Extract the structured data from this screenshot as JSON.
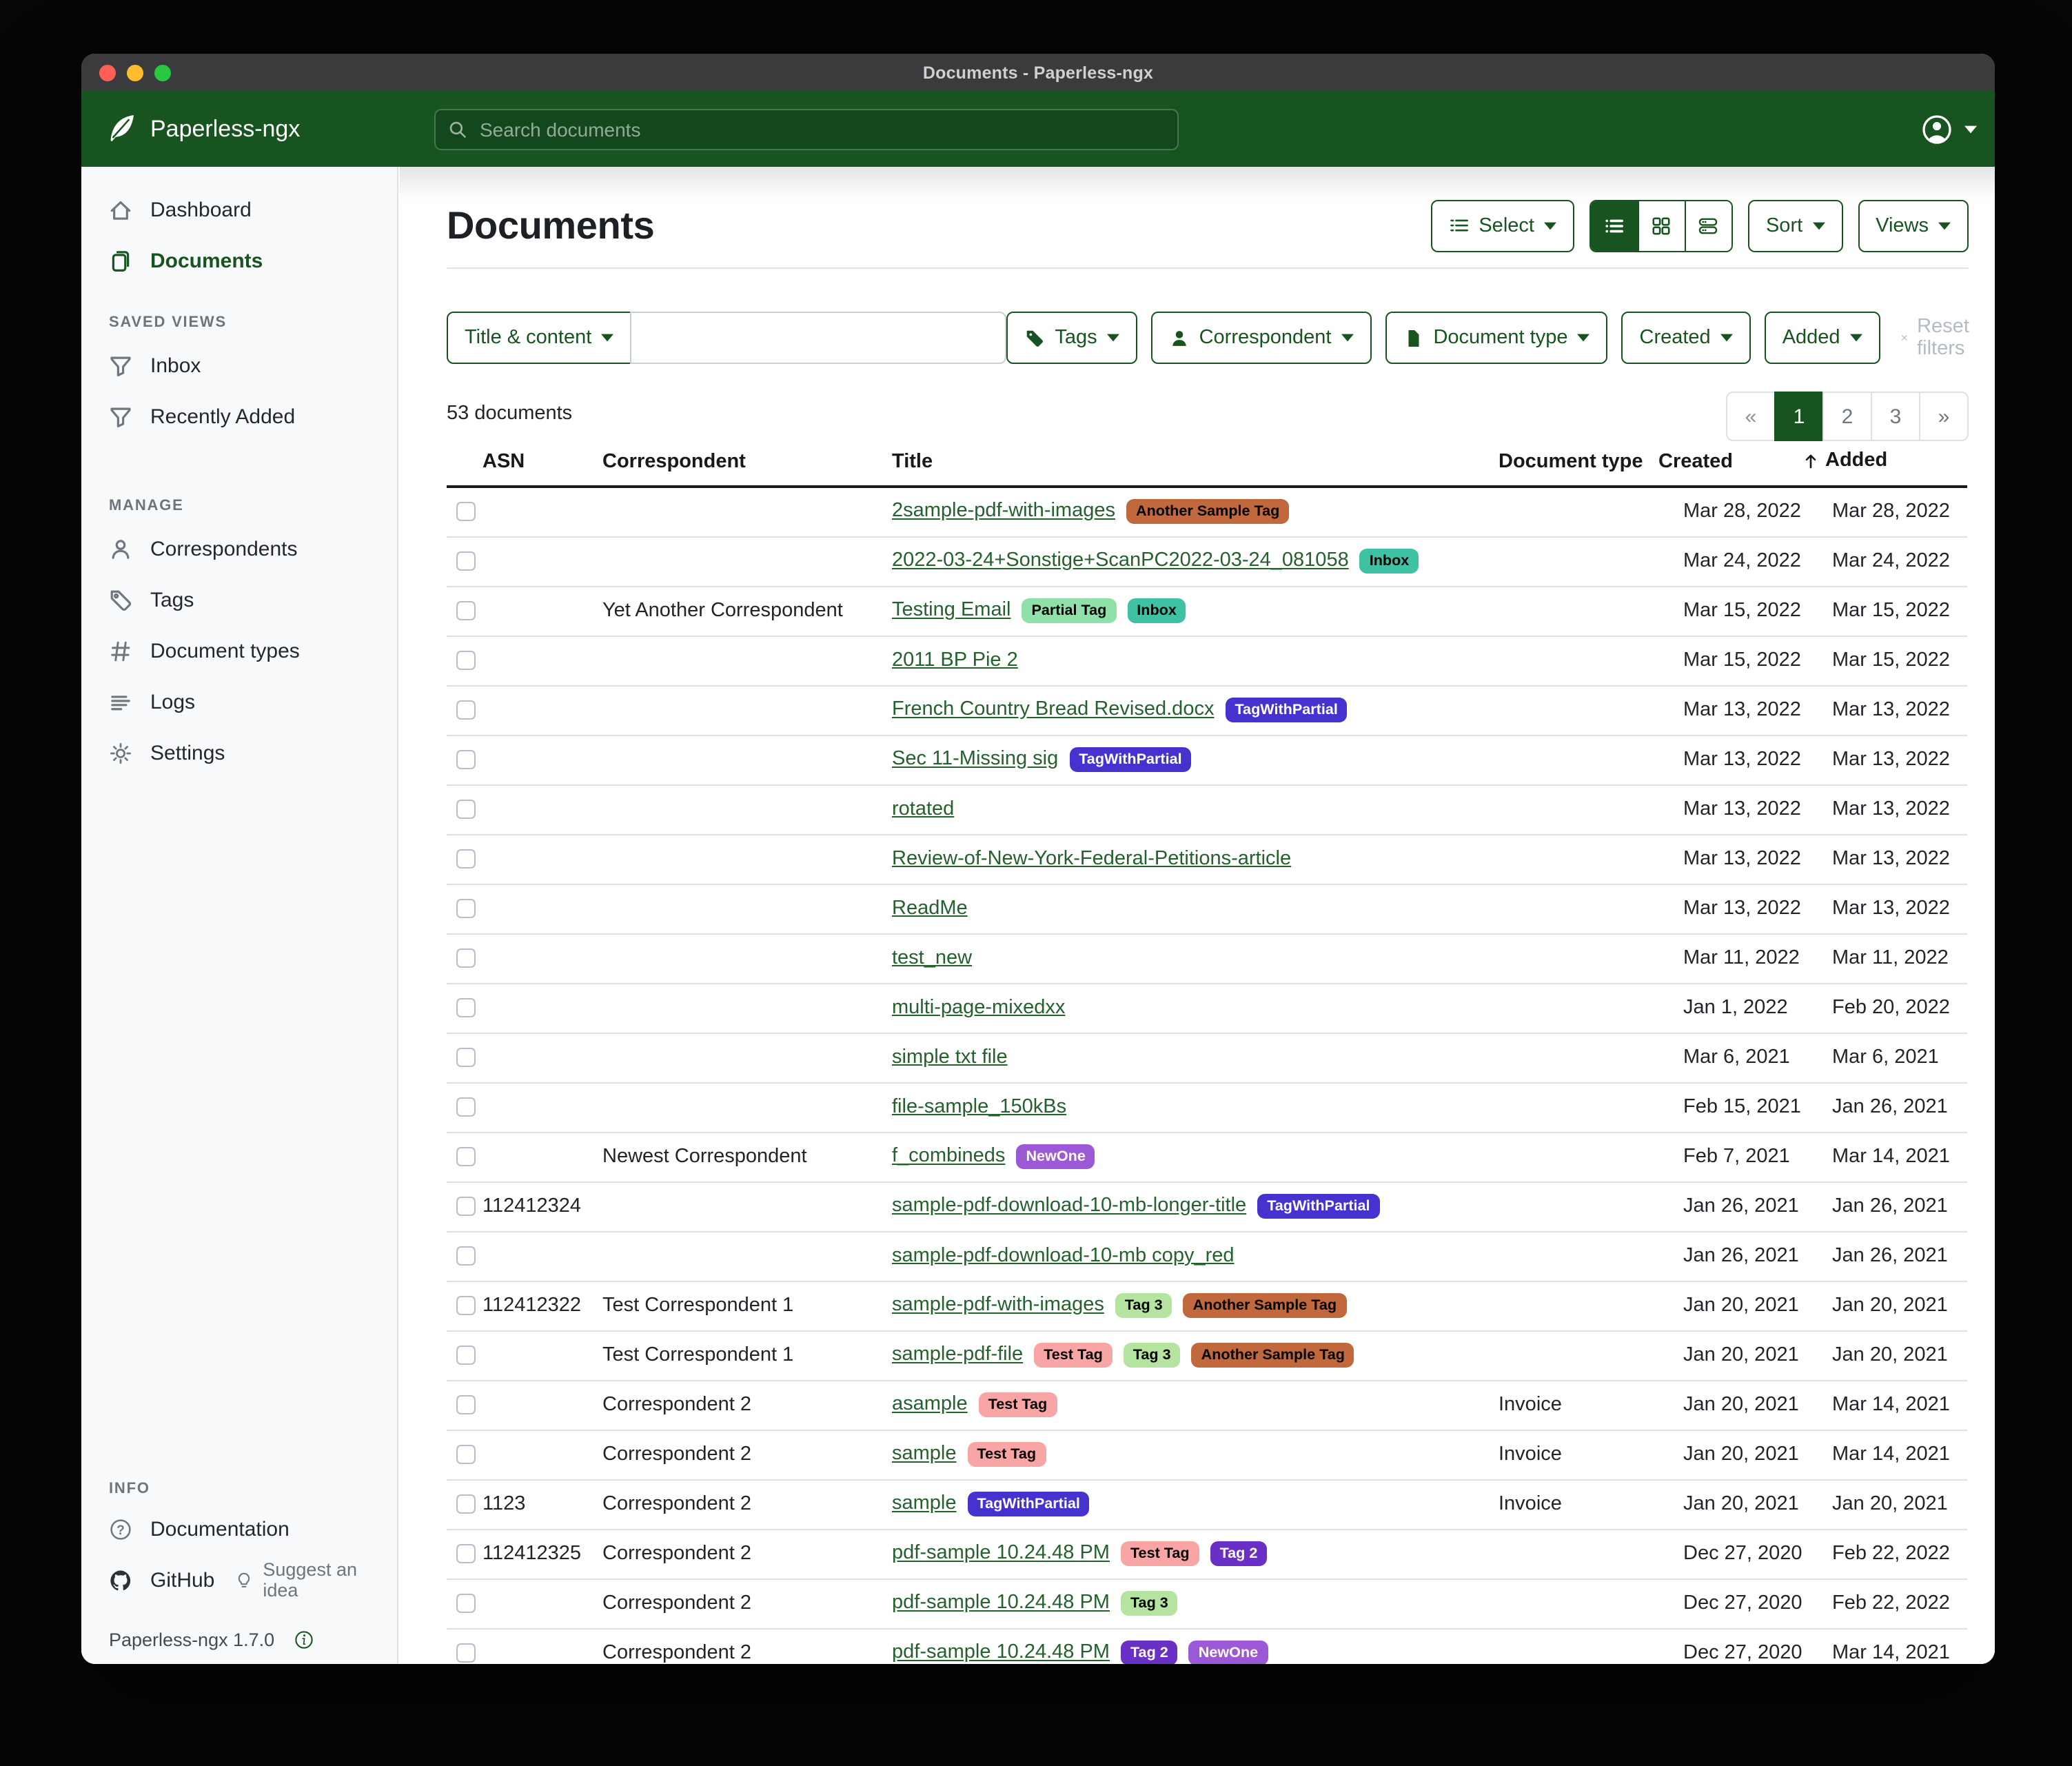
{
  "window": {
    "title": "Documents - Paperless-ngx"
  },
  "navbar": {
    "brand": "Paperless-ngx",
    "search_placeholder": "Search documents"
  },
  "sidebar": {
    "sections": [
      {
        "header": "",
        "items": [
          {
            "icon": "home",
            "label": "Dashboard",
            "active": false
          },
          {
            "icon": "documents",
            "label": "Documents",
            "active": true
          }
        ]
      },
      {
        "header": "SAVED VIEWS",
        "items": [
          {
            "icon": "funnel",
            "label": "Inbox",
            "active": false
          },
          {
            "icon": "funnel",
            "label": "Recently Added",
            "active": false
          }
        ]
      },
      {
        "header": "MANAGE",
        "items": [
          {
            "icon": "person",
            "label": "Correspondents",
            "active": false
          },
          {
            "icon": "tag",
            "label": "Tags",
            "active": false
          },
          {
            "icon": "hash",
            "label": "Document types",
            "active": false
          },
          {
            "icon": "logs",
            "label": "Logs",
            "active": false
          },
          {
            "icon": "gear",
            "label": "Settings",
            "active": false
          }
        ]
      }
    ],
    "info": {
      "header": "INFO",
      "documentation_label": "Documentation",
      "github_label": "GitHub",
      "suggest_label": "Suggest an idea",
      "version": "Paperless-ngx 1.7.0"
    }
  },
  "toolbar": {
    "title": "Documents",
    "select_label": "Select",
    "sort_label": "Sort",
    "views_label": "Views",
    "view_modes": [
      {
        "icon": "view-list",
        "name": "list",
        "active": true
      },
      {
        "icon": "view-grid",
        "name": "grid",
        "active": false
      },
      {
        "icon": "view-detail",
        "name": "detail",
        "active": false
      }
    ]
  },
  "filters": {
    "field_label": "Title & content",
    "input_value": "",
    "buttons": [
      {
        "label": "Tags",
        "icon": "tag-fill"
      },
      {
        "label": "Correspondent",
        "icon": "person-fill"
      },
      {
        "label": "Document type",
        "icon": "file-fill"
      },
      {
        "label": "Created",
        "icon": ""
      },
      {
        "label": "Added",
        "icon": ""
      }
    ],
    "reset_label": "Reset filters"
  },
  "summary": {
    "count_text": "53 documents"
  },
  "pagination": {
    "items": [
      "«",
      "1",
      "2",
      "3",
      "»"
    ],
    "active": "1"
  },
  "table": {
    "headers": {
      "asn": "ASN",
      "correspondent": "Correspondent",
      "title": "Title",
      "type": "Document type",
      "created": "Created",
      "added": "Added"
    },
    "rows": [
      {
        "asn": "",
        "correspondent": "",
        "title": "2sample-pdf-with-images",
        "tags": [
          "Another Sample Tag"
        ],
        "type": "",
        "created": "Mar 28, 2022",
        "added": "Mar 28, 2022"
      },
      {
        "asn": "",
        "correspondent": "",
        "title": "2022-03-24+Sonstige+ScanPC2022-03-24_081058",
        "tags": [
          "Inbox"
        ],
        "type": "",
        "created": "Mar 24, 2022",
        "added": "Mar 24, 2022"
      },
      {
        "asn": "",
        "correspondent": "Yet Another Correspondent",
        "title": "Testing Email",
        "tags": [
          "Partial Tag",
          "Inbox"
        ],
        "type": "",
        "created": "Mar 15, 2022",
        "added": "Mar 15, 2022"
      },
      {
        "asn": "",
        "correspondent": "",
        "title": "2011 BP Pie 2",
        "tags": [],
        "type": "",
        "created": "Mar 15, 2022",
        "added": "Mar 15, 2022"
      },
      {
        "asn": "",
        "correspondent": "",
        "title": "French Country Bread Revised.docx",
        "tags": [
          "TagWithPartial"
        ],
        "type": "",
        "created": "Mar 13, 2022",
        "added": "Mar 13, 2022"
      },
      {
        "asn": "",
        "correspondent": "",
        "title": "Sec 11-Missing sig",
        "tags": [
          "TagWithPartial"
        ],
        "type": "",
        "created": "Mar 13, 2022",
        "added": "Mar 13, 2022"
      },
      {
        "asn": "",
        "correspondent": "",
        "title": "rotated",
        "tags": [],
        "type": "",
        "created": "Mar 13, 2022",
        "added": "Mar 13, 2022"
      },
      {
        "asn": "",
        "correspondent": "",
        "title": "Review-of-New-York-Federal-Petitions-article",
        "tags": [],
        "type": "",
        "created": "Mar 13, 2022",
        "added": "Mar 13, 2022"
      },
      {
        "asn": "",
        "correspondent": "",
        "title": "ReadMe",
        "tags": [],
        "type": "",
        "created": "Mar 13, 2022",
        "added": "Mar 13, 2022"
      },
      {
        "asn": "",
        "correspondent": "",
        "title": "test_new",
        "tags": [],
        "type": "",
        "created": "Mar 11, 2022",
        "added": "Mar 11, 2022"
      },
      {
        "asn": "",
        "correspondent": "",
        "title": "multi-page-mixedxx",
        "tags": [],
        "type": "",
        "created": "Jan 1, 2022",
        "added": "Feb 20, 2022"
      },
      {
        "asn": "",
        "correspondent": "",
        "title": "simple txt file",
        "tags": [],
        "type": "",
        "created": "Mar 6, 2021",
        "added": "Mar 6, 2021"
      },
      {
        "asn": "",
        "correspondent": "",
        "title": "file-sample_150kBs",
        "tags": [],
        "type": "",
        "created": "Feb 15, 2021",
        "added": "Jan 26, 2021"
      },
      {
        "asn": "",
        "correspondent": "Newest Correspondent",
        "title": "f_combineds",
        "tags": [
          "NewOne"
        ],
        "type": "",
        "created": "Feb 7, 2021",
        "added": "Mar 14, 2021"
      },
      {
        "asn": "112412324",
        "correspondent": "",
        "title": "sample-pdf-download-10-mb-longer-title",
        "tags": [
          "TagWithPartial"
        ],
        "type": "",
        "created": "Jan 26, 2021",
        "added": "Jan 26, 2021"
      },
      {
        "asn": "",
        "correspondent": "",
        "title": "sample-pdf-download-10-mb copy_red",
        "tags": [],
        "type": "",
        "created": "Jan 26, 2021",
        "added": "Jan 26, 2021"
      },
      {
        "asn": "112412322",
        "correspondent": "Test Correspondent 1",
        "title": "sample-pdf-with-images",
        "tags": [
          "Tag 3",
          "Another Sample Tag"
        ],
        "type": "",
        "created": "Jan 20, 2021",
        "added": "Jan 20, 2021"
      },
      {
        "asn": "",
        "correspondent": "Test Correspondent 1",
        "title": "sample-pdf-file",
        "tags": [
          "Test Tag",
          "Tag 3",
          "Another Sample Tag"
        ],
        "type": "",
        "created": "Jan 20, 2021",
        "added": "Jan 20, 2021"
      },
      {
        "asn": "",
        "correspondent": "Correspondent 2",
        "title": "asample",
        "tags": [
          "Test Tag"
        ],
        "type": "Invoice",
        "created": "Jan 20, 2021",
        "added": "Mar 14, 2021"
      },
      {
        "asn": "",
        "correspondent": "Correspondent 2",
        "title": "sample",
        "tags": [
          "Test Tag"
        ],
        "type": "Invoice",
        "created": "Jan 20, 2021",
        "added": "Mar 14, 2021"
      },
      {
        "asn": "1123",
        "correspondent": "Correspondent 2",
        "title": "sample",
        "tags": [
          "TagWithPartial"
        ],
        "type": "Invoice",
        "created": "Jan 20, 2021",
        "added": "Jan 20, 2021"
      },
      {
        "asn": "112412325",
        "correspondent": "Correspondent 2",
        "title": "pdf-sample 10.24.48 PM",
        "tags": [
          "Test Tag",
          "Tag 2"
        ],
        "type": "",
        "created": "Dec 27, 2020",
        "added": "Feb 22, 2022"
      },
      {
        "asn": "",
        "correspondent": "Correspondent 2",
        "title": "pdf-sample 10.24.48 PM",
        "tags": [
          "Tag 3"
        ],
        "type": "",
        "created": "Dec 27, 2020",
        "added": "Feb 22, 2022"
      },
      {
        "asn": "",
        "correspondent": "Correspondent 2",
        "title": "pdf-sample 10.24.48 PM",
        "tags": [
          "Tag 2",
          "NewOne"
        ],
        "type": "",
        "created": "Dec 27, 2020",
        "added": "Mar 14, 2021"
      }
    ]
  },
  "tag_styles": {
    "Another Sample Tag": {
      "bg": "#c1693c",
      "fg": "#000000"
    },
    "Inbox": {
      "bg": "#3fc1a4",
      "fg": "#000000"
    },
    "Partial Tag": {
      "bg": "#8fe0a9",
      "fg": "#000000"
    },
    "TagWithPartial": {
      "bg": "#4632cf",
      "fg": "#ffffff"
    },
    "NewOne": {
      "bg": "#9b59d6",
      "fg": "#ffffff"
    },
    "Test Tag": {
      "bg": "#f8a5a5",
      "fg": "#000000"
    },
    "Tag 3": {
      "bg": "#b5e3a0",
      "fg": "#000000"
    },
    "Tag 2": {
      "bg": "#6a2fc4",
      "fg": "#ffffff"
    }
  },
  "colors": {
    "brand_green": "#17541f",
    "link_green": "#24612c",
    "titlebar": "#3b3b3d"
  }
}
